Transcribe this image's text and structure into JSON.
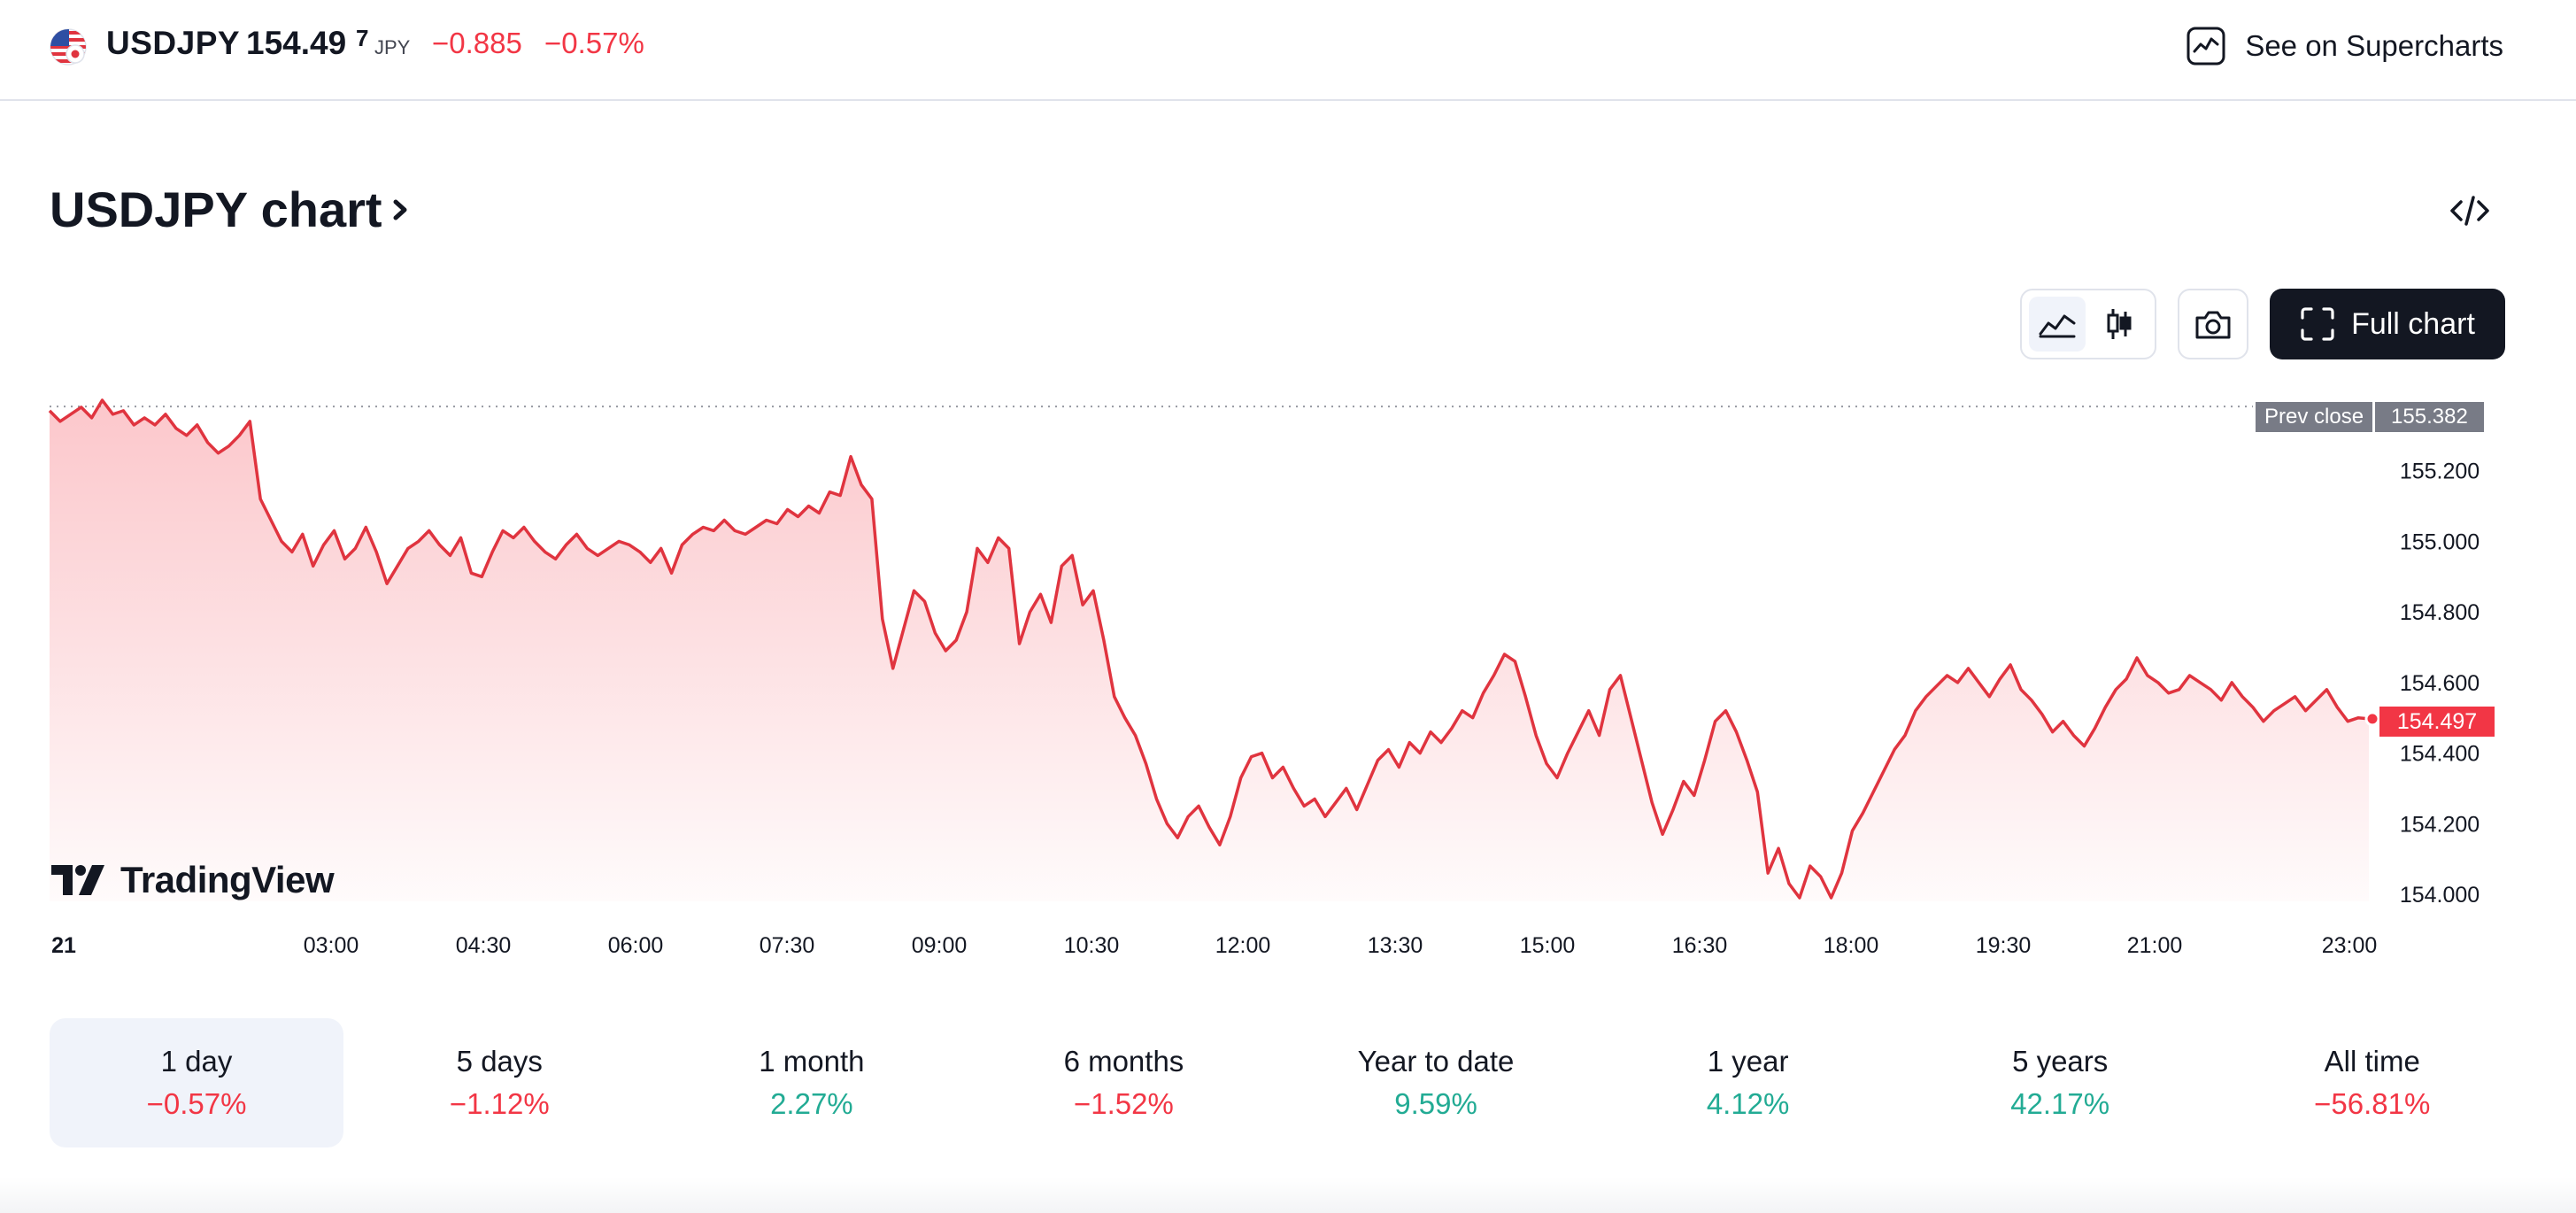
{
  "header": {
    "symbol": "USDJPY",
    "price_main": "154.49",
    "price_sup": "7",
    "currency": "JPY",
    "change": "−0.885",
    "change_pct": "−0.57%",
    "supercharts_label": "See on Supercharts"
  },
  "title": "USDJPY chart",
  "toolbar": {
    "full_chart_label": "Full chart"
  },
  "colors": {
    "accent_red": "#f23645",
    "accent_green": "#22ab94",
    "dark": "#131722"
  },
  "icons": [
    "us-jp-flag-icon",
    "chart-line-icon",
    "code-embed-icon",
    "area-chart-icon",
    "candles-icon",
    "camera-icon",
    "fullscreen-icon",
    "tradingview-logo"
  ],
  "chart_data": {
    "type": "area",
    "x_ticks": [
      "21",
      "03:00",
      "04:30",
      "06:00",
      "07:30",
      "09:00",
      "10:30",
      "12:00",
      "13:30",
      "15:00",
      "16:30",
      "18:00",
      "19:30",
      "21:00",
      "23:00"
    ],
    "y_ticks": [
      "155.200",
      "155.000",
      "154.800",
      "154.600",
      "154.400",
      "154.200",
      "154.000"
    ],
    "ylim": [
      153.98,
      155.43
    ],
    "prev_close_label": "Prev close",
    "prev_close": "155.382",
    "last_value": "154.497",
    "series": [
      {
        "values": [
          155.37,
          155.34,
          155.36,
          155.38,
          155.35,
          155.4,
          155.36,
          155.37,
          155.33,
          155.35,
          155.33,
          155.36,
          155.32,
          155.3,
          155.33,
          155.28,
          155.25,
          155.27,
          155.3,
          155.34,
          155.12,
          155.06,
          155.0,
          154.97,
          155.02,
          154.93,
          154.99,
          155.03,
          154.95,
          154.98,
          155.04,
          154.97,
          154.88,
          154.93,
          154.98,
          155.0,
          155.03,
          154.99,
          154.96,
          155.01,
          154.91,
          154.9,
          154.97,
          155.03,
          155.01,
          155.04,
          155.0,
          154.97,
          154.95,
          154.99,
          155.02,
          154.98,
          154.96,
          154.98,
          155.0,
          154.99,
          154.97,
          154.94,
          154.98,
          154.91,
          154.99,
          155.02,
          155.04,
          155.03,
          155.06,
          155.03,
          155.02,
          155.04,
          155.06,
          155.05,
          155.09,
          155.07,
          155.1,
          155.08,
          155.14,
          155.13,
          155.24,
          155.16,
          155.12,
          154.78,
          154.64,
          154.75,
          154.86,
          154.83,
          154.74,
          154.69,
          154.72,
          154.8,
          154.98,
          154.94,
          155.01,
          154.98,
          154.71,
          154.8,
          154.85,
          154.77,
          154.93,
          154.96,
          154.82,
          154.86,
          154.72,
          154.56,
          154.5,
          154.45,
          154.37,
          154.27,
          154.2,
          154.16,
          154.22,
          154.25,
          154.19,
          154.14,
          154.22,
          154.33,
          154.39,
          154.4,
          154.33,
          154.36,
          154.3,
          154.25,
          154.27,
          154.22,
          154.26,
          154.3,
          154.24,
          154.31,
          154.38,
          154.41,
          154.36,
          154.43,
          154.4,
          154.46,
          154.43,
          154.47,
          154.52,
          154.5,
          154.57,
          154.62,
          154.68,
          154.66,
          154.56,
          154.45,
          154.37,
          154.33,
          154.4,
          154.46,
          154.52,
          154.45,
          154.58,
          154.62,
          154.5,
          154.38,
          154.26,
          154.17,
          154.24,
          154.32,
          154.28,
          154.38,
          154.49,
          154.52,
          154.46,
          154.38,
          154.29,
          154.06,
          154.13,
          154.03,
          153.99,
          154.08,
          154.05,
          153.99,
          154.06,
          154.18,
          154.23,
          154.29,
          154.35,
          154.41,
          154.45,
          154.52,
          154.56,
          154.59,
          154.62,
          154.6,
          154.64,
          154.6,
          154.56,
          154.61,
          154.65,
          154.58,
          154.55,
          154.51,
          154.46,
          154.49,
          154.45,
          154.42,
          154.47,
          154.53,
          154.58,
          154.61,
          154.67,
          154.62,
          154.6,
          154.57,
          154.58,
          154.62,
          154.6,
          154.58,
          154.55,
          154.6,
          154.56,
          154.53,
          154.49,
          154.52,
          154.54,
          154.56,
          154.52,
          154.55,
          154.58,
          154.53,
          154.49,
          154.5,
          154.497
        ]
      }
    ]
  },
  "periods": [
    {
      "label": "1 day",
      "value": "−0.57%"
    },
    {
      "label": "5 days",
      "value": "−1.12%"
    },
    {
      "label": "1 month",
      "value": "2.27%"
    },
    {
      "label": "6 months",
      "value": "−1.52%"
    },
    {
      "label": "Year to date",
      "value": "9.59%"
    },
    {
      "label": "1 year",
      "value": "4.12%"
    },
    {
      "label": "5 years",
      "value": "42.17%"
    },
    {
      "label": "All time",
      "value": "−56.81%"
    }
  ]
}
